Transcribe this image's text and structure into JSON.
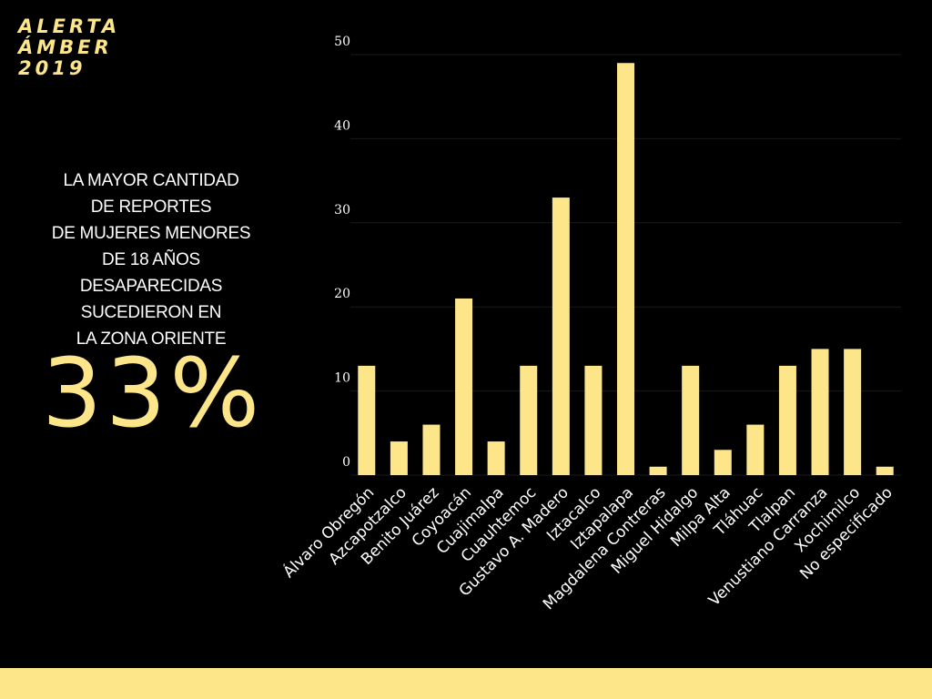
{
  "brand": {
    "line1": "ALERTA",
    "line2": "ÁMBER",
    "line3": "2019"
  },
  "headline": {
    "lines": [
      "LA MAYOR CANTIDAD",
      "DE REPORTES",
      "DE MUJERES MENORES",
      "DE 18 AÑOS",
      "DESAPARECIDAS",
      "SUCEDIERON EN",
      "LA ZONA ORIENTE"
    ],
    "percentage": "33%"
  },
  "colors": {
    "accent": "#fde68a",
    "background": "#000000",
    "text": "#ffffff",
    "grid": "#1a1a1a"
  },
  "chart_data": {
    "type": "bar",
    "categories": [
      "Álvaro Obregón",
      "Azcapotzalco",
      "Benito Juárez",
      "Coyoacán",
      "Cuajimalpa",
      "Cuauhtemoc",
      "Gustavo A. Madero",
      "Iztacalco",
      "Iztapalapa",
      "Magdalena Contreras",
      "Miguel Hidalgo",
      "Milpa Alta",
      "Tláhuac",
      "Tlalpan",
      "Venustiano Carranza",
      "Xochimilco",
      "No especificado"
    ],
    "values": [
      13,
      4,
      6,
      21,
      4,
      13,
      33,
      13,
      49,
      1,
      13,
      3,
      6,
      13,
      15,
      15,
      1
    ],
    "ylim": [
      0,
      50
    ],
    "yticks": [
      "0",
      "10",
      "20",
      "30",
      "40",
      "50"
    ],
    "grid": true,
    "bar_color": "#fde68a"
  }
}
